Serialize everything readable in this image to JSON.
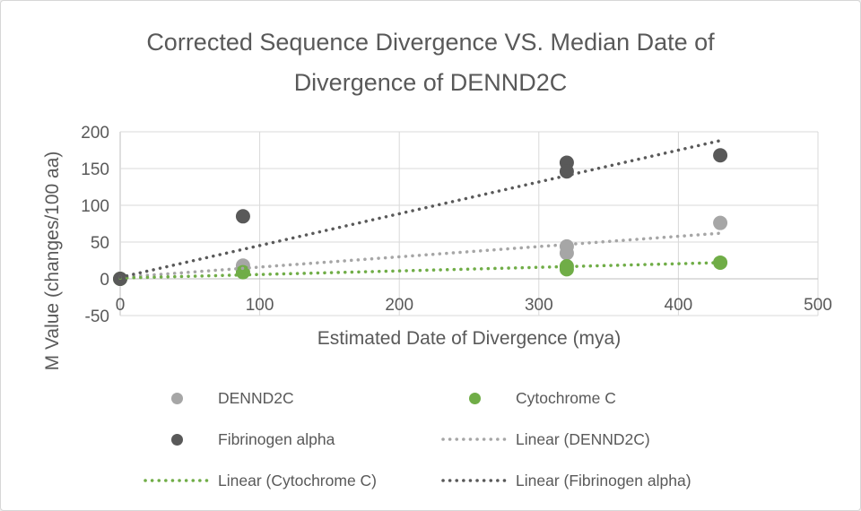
{
  "page": {
    "background": "#ffffff",
    "border_color": "#d6d6d6"
  },
  "chart_data": {
    "type": "scatter",
    "title": "Corrected Sequence Divergence VS. Median Date of Divergence of DENND2C",
    "xlabel": "Estimated Date of Divergence (mya)",
    "ylabel": "M Value (changes/100 aa)",
    "xlim": [
      0,
      500
    ],
    "ylim": [
      -50,
      200
    ],
    "x_ticks": [
      0,
      100,
      200,
      300,
      400,
      500
    ],
    "y_ticks": [
      200,
      150,
      100,
      50,
      0,
      -50
    ],
    "grid": true,
    "gridline_color": "#d9d9d9",
    "axis_line_color": "#bfbfbf",
    "text_color": "#595959",
    "legend_position": "bottom",
    "series": [
      {
        "name": "DENND2C",
        "color": "#a6a6a6",
        "points": [
          [
            0,
            0
          ],
          [
            88,
            18
          ],
          [
            320,
            44
          ],
          [
            320,
            35
          ],
          [
            430,
            76
          ]
        ]
      },
      {
        "name": "Cytochrome C",
        "color": "#70ad47",
        "points": [
          [
            0,
            0
          ],
          [
            88,
            9
          ],
          [
            320,
            17
          ],
          [
            320,
            13
          ],
          [
            430,
            22
          ]
        ]
      },
      {
        "name": "Fibrinogen alpha",
        "color": "#595959",
        "points": [
          [
            0,
            0
          ],
          [
            88,
            85
          ],
          [
            320,
            158
          ],
          [
            320,
            146
          ],
          [
            430,
            168
          ]
        ]
      }
    ],
    "trendlines": [
      {
        "name": "Linear (DENND2C)",
        "color": "#a6a6a6",
        "from": [
          0,
          2
        ],
        "to": [
          430,
          62
        ]
      },
      {
        "name": "Linear (Cytochrome C)",
        "color": "#70ad47",
        "from": [
          0,
          1
        ],
        "to": [
          430,
          22
        ]
      },
      {
        "name": "Linear (Fibrinogen alpha)",
        "color": "#595959",
        "from": [
          0,
          2
        ],
        "to": [
          430,
          188
        ]
      }
    ],
    "legend": [
      {
        "label": "DENND2C",
        "marker": "dot",
        "color": "#a6a6a6"
      },
      {
        "label": "Cytochrome C",
        "marker": "dot",
        "color": "#70ad47"
      },
      {
        "label": "Fibrinogen alpha",
        "marker": "dot",
        "color": "#595959"
      },
      {
        "label": "Linear (DENND2C)",
        "marker": "dotted-line",
        "color": "#a6a6a6"
      },
      {
        "label": "Linear (Cytochrome C)",
        "marker": "dotted-line",
        "color": "#70ad47"
      },
      {
        "label": "Linear (Fibrinogen alpha)",
        "marker": "dotted-line",
        "color": "#595959"
      }
    ]
  }
}
